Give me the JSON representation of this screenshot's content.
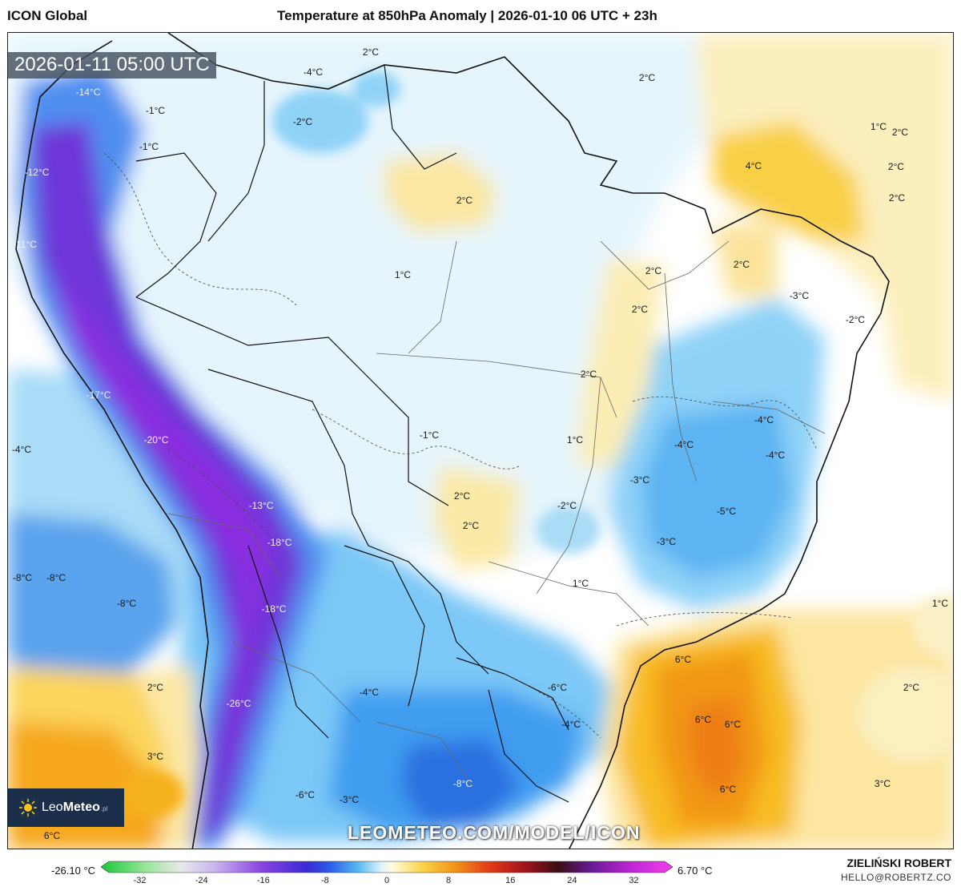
{
  "header": {
    "model": "ICON Global",
    "title": "Temperature at 850hPa Anomaly | 2026-01-10 06 UTC + 23h"
  },
  "time_badge": "2026-01-11 05:00 UTC",
  "watermark": "LEOMETEO.COM/MODEL/ICON",
  "logo": {
    "word1": "Leo",
    "word2": "Meteo",
    "suffix": ".pl",
    "icon": "sun-icon"
  },
  "labels": [
    {
      "text": "2°C"
    },
    {
      "text": "-4°C"
    },
    {
      "text": "-2°C"
    },
    {
      "text": "-14°C"
    },
    {
      "text": "-1°C"
    },
    {
      "text": "-1°C"
    },
    {
      "text": "-12°C"
    },
    {
      "text": "-11°C"
    },
    {
      "text": "2°C"
    },
    {
      "text": "2°C"
    },
    {
      "text": "1°C"
    },
    {
      "text": "2°C"
    },
    {
      "text": "4°C"
    },
    {
      "text": "2°C"
    },
    {
      "text": "2°C"
    },
    {
      "text": "1°C"
    },
    {
      "text": "2°C"
    },
    {
      "text": "2°C"
    },
    {
      "text": "-3°C"
    },
    {
      "text": "-2°C"
    },
    {
      "text": "2°C"
    },
    {
      "text": "2°C"
    },
    {
      "text": "-17°C"
    },
    {
      "text": "-20°C"
    },
    {
      "text": "-4°C"
    },
    {
      "text": "-1°C"
    },
    {
      "text": "1°C"
    },
    {
      "text": "-4°C"
    },
    {
      "text": "-4°C"
    },
    {
      "text": "-4°C"
    },
    {
      "text": "-3°C"
    },
    {
      "text": "2°C"
    },
    {
      "text": "2°C"
    },
    {
      "text": "-2°C"
    },
    {
      "text": "-5°C"
    },
    {
      "text": "-13°C"
    },
    {
      "text": "-18°C"
    },
    {
      "text": "-3°C"
    },
    {
      "text": "-8°C"
    },
    {
      "text": "-8°C"
    },
    {
      "text": "-8°C"
    },
    {
      "text": "1°C"
    },
    {
      "text": "1°C"
    },
    {
      "text": "-18°C"
    },
    {
      "text": "6°C"
    },
    {
      "text": "2°C"
    },
    {
      "text": "2°C"
    },
    {
      "text": "-4°C"
    },
    {
      "text": "-6°C"
    },
    {
      "text": "-26°C"
    },
    {
      "text": "6°C"
    },
    {
      "text": "6°C"
    },
    {
      "text": "-4°C"
    },
    {
      "text": "3°C"
    },
    {
      "text": "-8°C"
    },
    {
      "text": "-6°C"
    },
    {
      "text": "-3°C"
    },
    {
      "text": "6°C"
    },
    {
      "text": "3°C"
    },
    {
      "text": "6°C"
    }
  ],
  "colorbar": {
    "min_label": "-26.10 °C",
    "max_label": "6.70 °C",
    "ticks": [
      "-32",
      "-24",
      "-16",
      "-8",
      "0",
      "8",
      "16",
      "24",
      "32"
    ],
    "range": [
      -36,
      36
    ]
  },
  "author": "ZIELIŃSKI ROBERT",
  "contact": "HELLO@ROBERTZ.CO",
  "colors": {
    "very_cold": "#7a22d0",
    "cold": "#2f6fe8",
    "cool": "#8fd2f8",
    "light_cool": "#e4f4fc",
    "neutral": "#ffffff",
    "warm": "#fbe9a3",
    "warmer": "#f8c21c",
    "hot": "#f28a10"
  }
}
